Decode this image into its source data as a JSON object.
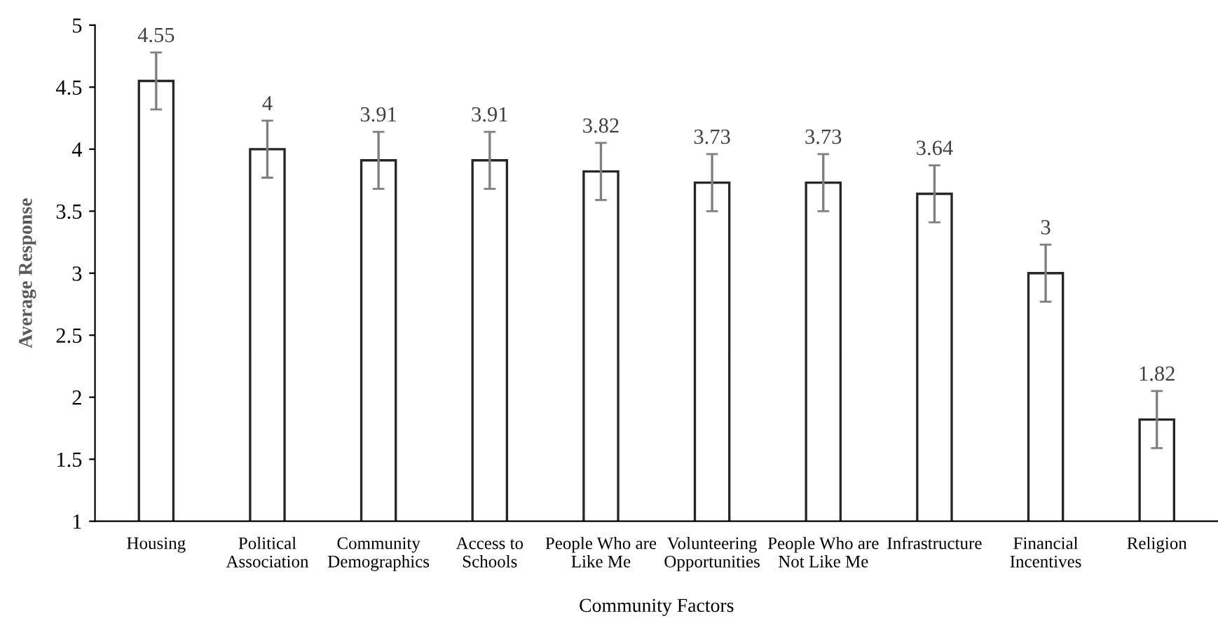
{
  "chart_data": {
    "type": "bar",
    "xlabel": "Community Factors",
    "ylabel": "Average Response",
    "categories": [
      "Housing",
      "Political\nAssociation",
      "Community\nDemographics",
      "Access to\nSchools",
      "People Who are\nLike Me",
      "Volunteering\nOpportunities",
      "People Who are\nNot Like Me",
      "Infrastructure",
      "Financial\nIncentives",
      "Religion"
    ],
    "values": [
      4.55,
      4,
      3.91,
      3.91,
      3.82,
      3.73,
      3.73,
      3.64,
      3,
      1.82
    ],
    "errors": [
      0.23,
      0.23,
      0.23,
      0.23,
      0.23,
      0.23,
      0.23,
      0.23,
      0.23,
      0.23
    ],
    "color": "#ffffff",
    "ylim": [
      1,
      5
    ],
    "yticks": [
      1,
      1.5,
      2,
      2.5,
      3,
      3.5,
      4,
      4.5,
      5
    ],
    "data_labels": true,
    "grid": false,
    "legend": false
  }
}
